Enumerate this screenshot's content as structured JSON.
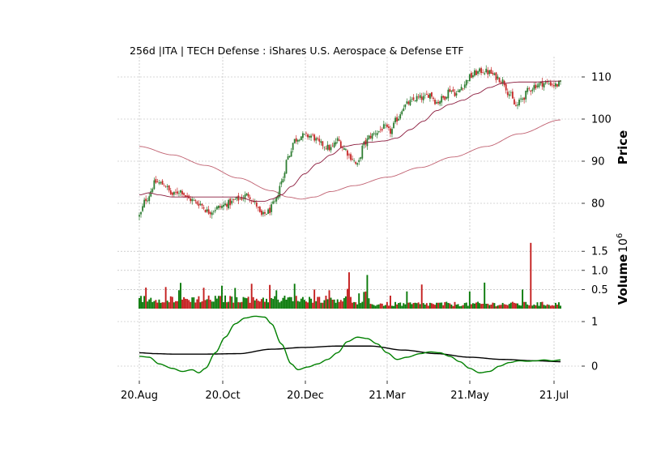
{
  "chart_data": {
    "type": "candlestick",
    "title": "256d |ITA | TECH Defense : iShares U.S. Aerospace & Defense ETF",
    "grid": true,
    "colors": {
      "up": "#2e7d32",
      "down": "#c62828",
      "ma_short": "#8b1a3c",
      "ma_long": "#c06070",
      "osc_fast": "#008000",
      "osc_slow": "#000000",
      "grid": "#b0b0b0"
    },
    "x_ticks": [
      "20.Aug",
      "20.Oct",
      "20.Dec",
      "21.Mar",
      "21.May",
      "21.Jul"
    ],
    "price_panel": {
      "ylabel": "Price",
      "ylim": [
        73,
        114
      ],
      "yticks": [
        80,
        90,
        100,
        110
      ],
      "close_anchors": [
        [
          0,
          77
        ],
        [
          4,
          81
        ],
        [
          10,
          85
        ],
        [
          15,
          84.5
        ],
        [
          20,
          82
        ],
        [
          25,
          83
        ],
        [
          30,
          81
        ],
        [
          36,
          80
        ],
        [
          42,
          78
        ],
        [
          48,
          79
        ],
        [
          54,
          80
        ],
        [
          60,
          81
        ],
        [
          66,
          82
        ],
        [
          70,
          80
        ],
        [
          74,
          77
        ],
        [
          78,
          78
        ],
        [
          82,
          80
        ],
        [
          86,
          85
        ],
        [
          90,
          91
        ],
        [
          94,
          95
        ],
        [
          98,
          96
        ],
        [
          104,
          96
        ],
        [
          110,
          94
        ],
        [
          116,
          93
        ],
        [
          120,
          95
        ],
        [
          124,
          93
        ],
        [
          128,
          91
        ],
        [
          132,
          89
        ],
        [
          136,
          94
        ],
        [
          140,
          96
        ],
        [
          144,
          97
        ],
        [
          148,
          98
        ],
        [
          152,
          97
        ],
        [
          156,
          100
        ],
        [
          160,
          103
        ],
        [
          164,
          104
        ],
        [
          168,
          105
        ],
        [
          172,
          105
        ],
        [
          176,
          106
        ],
        [
          180,
          104
        ],
        [
          184,
          105
        ],
        [
          188,
          107
        ],
        [
          192,
          106
        ],
        [
          196,
          108
        ],
        [
          200,
          110
        ],
        [
          204,
          111
        ],
        [
          208,
          111.5
        ],
        [
          212,
          111
        ],
        [
          216,
          110
        ],
        [
          220,
          109
        ],
        [
          224,
          106
        ],
        [
          228,
          103
        ],
        [
          232,
          105
        ],
        [
          236,
          107
        ],
        [
          240,
          108
        ],
        [
          244,
          108.5
        ],
        [
          248,
          108.5
        ],
        [
          252,
          108
        ],
        [
          255,
          108.5
        ]
      ],
      "ma_short_anchors": [
        [
          0,
          82
        ],
        [
          6,
          82.5
        ],
        [
          12,
          82
        ],
        [
          20,
          81.5
        ],
        [
          30,
          81.5
        ],
        [
          40,
          81.5
        ],
        [
          50,
          81.5
        ],
        [
          60,
          81.5
        ],
        [
          70,
          80.5
        ],
        [
          76,
          80.5
        ],
        [
          80,
          81
        ],
        [
          86,
          82
        ],
        [
          92,
          84
        ],
        [
          100,
          87
        ],
        [
          108,
          89.5
        ],
        [
          116,
          91.5
        ],
        [
          124,
          93.5
        ],
        [
          132,
          94
        ],
        [
          140,
          94.5
        ],
        [
          148,
          94.8
        ],
        [
          156,
          95.5
        ],
        [
          164,
          97.5
        ],
        [
          172,
          99.5
        ],
        [
          180,
          102
        ],
        [
          188,
          103.5
        ],
        [
          196,
          104.5
        ],
        [
          204,
          106
        ],
        [
          212,
          107.5
        ],
        [
          220,
          108.5
        ],
        [
          230,
          108.8
        ],
        [
          240,
          108.8
        ],
        [
          250,
          109
        ],
        [
          255,
          109
        ]
      ],
      "ma_long_anchors": [
        [
          0,
          93.5
        ],
        [
          20,
          91.5
        ],
        [
          40,
          89
        ],
        [
          60,
          86
        ],
        [
          80,
          83
        ],
        [
          90,
          81.5
        ],
        [
          98,
          81
        ],
        [
          106,
          81.5
        ],
        [
          116,
          82.8
        ],
        [
          130,
          84.2
        ],
        [
          150,
          86.2
        ],
        [
          170,
          88.5
        ],
        [
          190,
          91
        ],
        [
          210,
          93.5
        ],
        [
          230,
          96.5
        ],
        [
          255,
          99.8
        ]
      ]
    },
    "volume_panel": {
      "ylabel": "Volume",
      "scale_label": "10",
      "scale_exp": "6",
      "ylim": [
        0,
        1.7
      ],
      "yticks": [
        0.5,
        1.0,
        1.5
      ],
      "ytick_labels": [
        "0.5",
        "1.0",
        "1.5"
      ],
      "spikes": [
        [
          4,
          0.55
        ],
        [
          50,
          0.6
        ],
        [
          68,
          0.65
        ],
        [
          79,
          0.62
        ],
        [
          94,
          0.65
        ],
        [
          106,
          0.5
        ],
        [
          127,
          0.95
        ],
        [
          138,
          0.88
        ],
        [
          162,
          0.45
        ],
        [
          171,
          0.63
        ],
        [
          200,
          0.45
        ],
        [
          209,
          0.68
        ],
        [
          232,
          0.5
        ],
        [
          237,
          1.72
        ]
      ]
    },
    "oscillator_panel": {
      "ylim": [
        -0.35,
        1.2
      ],
      "yticks": [
        0,
        1
      ],
      "fast_anchors": [
        [
          0,
          0.22
        ],
        [
          6,
          0.2
        ],
        [
          12,
          0.05
        ],
        [
          20,
          -0.05
        ],
        [
          26,
          -0.12
        ],
        [
          32,
          -0.08
        ],
        [
          36,
          -0.15
        ],
        [
          40,
          -0.05
        ],
        [
          46,
          0.3
        ],
        [
          52,
          0.65
        ],
        [
          58,
          0.95
        ],
        [
          64,
          1.08
        ],
        [
          70,
          1.12
        ],
        [
          76,
          1.1
        ],
        [
          80,
          0.95
        ],
        [
          86,
          0.5
        ],
        [
          92,
          0.05
        ],
        [
          96,
          -0.08
        ],
        [
          102,
          -0.02
        ],
        [
          108,
          0.05
        ],
        [
          114,
          0.15
        ],
        [
          120,
          0.3
        ],
        [
          126,
          0.55
        ],
        [
          132,
          0.65
        ],
        [
          138,
          0.62
        ],
        [
          144,
          0.5
        ],
        [
          150,
          0.3
        ],
        [
          156,
          0.15
        ],
        [
          162,
          0.2
        ],
        [
          170,
          0.28
        ],
        [
          176,
          0.32
        ],
        [
          182,
          0.3
        ],
        [
          188,
          0.22
        ],
        [
          194,
          0.1
        ],
        [
          200,
          -0.05
        ],
        [
          206,
          -0.15
        ],
        [
          212,
          -0.12
        ],
        [
          218,
          0.0
        ],
        [
          224,
          0.08
        ],
        [
          230,
          0.12
        ],
        [
          235,
          0.11
        ],
        [
          240,
          0.12
        ],
        [
          245,
          0.14
        ],
        [
          250,
          0.12
        ],
        [
          255,
          0.14
        ]
      ],
      "slow_anchors": [
        [
          0,
          0.3
        ],
        [
          10,
          0.28
        ],
        [
          20,
          0.27
        ],
        [
          40,
          0.27
        ],
        [
          60,
          0.28
        ],
        [
          80,
          0.38
        ],
        [
          100,
          0.42
        ],
        [
          120,
          0.45
        ],
        [
          140,
          0.45
        ],
        [
          160,
          0.36
        ],
        [
          180,
          0.28
        ],
        [
          200,
          0.2
        ],
        [
          220,
          0.15
        ],
        [
          240,
          0.12
        ],
        [
          255,
          0.1
        ]
      ]
    }
  }
}
